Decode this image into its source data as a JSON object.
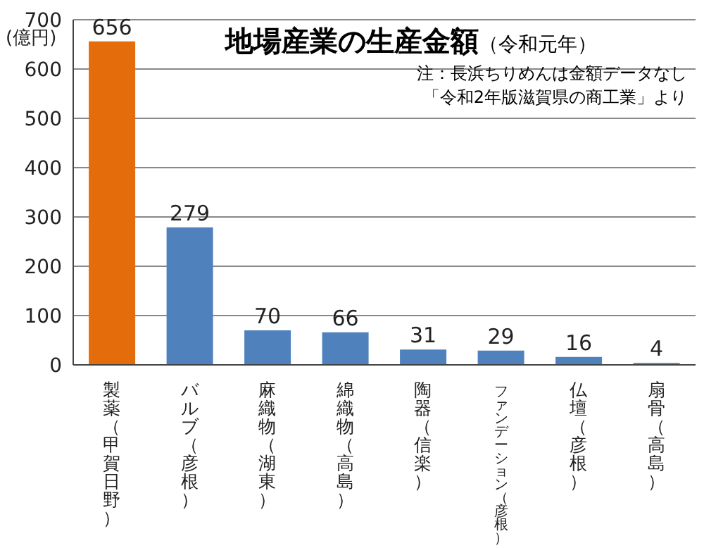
{
  "chart_data": {
    "type": "bar",
    "title": "地場産業の生産金額",
    "subtitle": "（令和元年）",
    "ylabel": "(億円)",
    "annotations": [
      "注：長浜ちりめんは金額データなし",
      "「令和2年版滋賀県の商工業」より"
    ],
    "categories": [
      "製薬（甲賀日野）",
      "バルブ（彦根）",
      "麻織物（湖東）",
      "綿織物（高島）",
      "陶器（信楽）",
      "ファンデーション（彦根）",
      "仏壇（彦根）",
      "扇骨（高島）"
    ],
    "values": [
      656,
      279,
      70,
      66,
      31,
      29,
      16,
      4
    ],
    "colors": [
      "#e46c0a",
      "#4f81bd",
      "#4f81bd",
      "#4f81bd",
      "#4f81bd",
      "#4f81bd",
      "#4f81bd",
      "#4f81bd"
    ],
    "ylim": [
      0,
      700
    ],
    "yticks": [
      0,
      100,
      200,
      300,
      400,
      500,
      600,
      700
    ],
    "grid": "y",
    "data_labels": true
  }
}
